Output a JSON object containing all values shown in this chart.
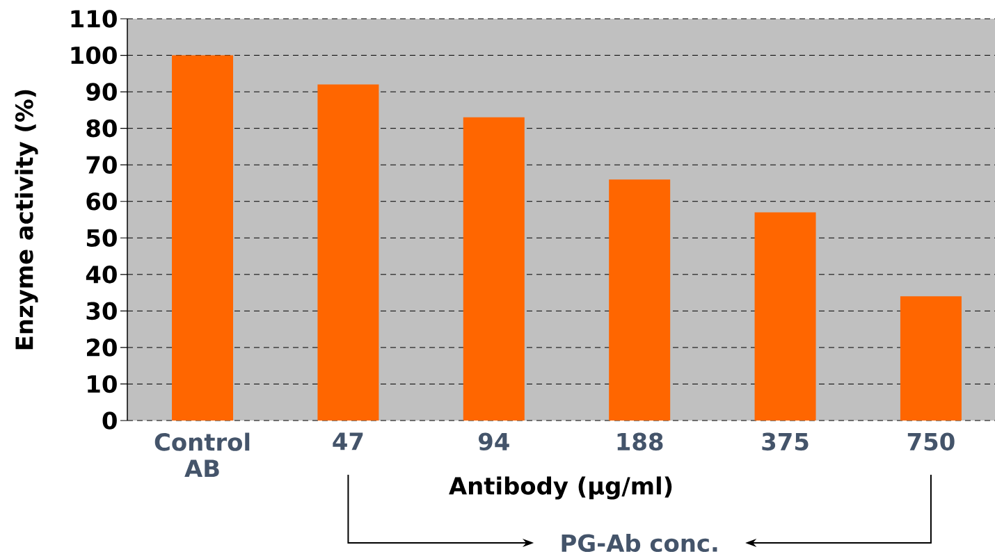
{
  "chart_data": {
    "type": "bar",
    "xlabel": "Antibody (µg/ml)",
    "ylabel": "Enzyme activity (%)",
    "categories": [
      "Control AB",
      "47",
      "94",
      "188",
      "375",
      "750"
    ],
    "values": [
      100,
      92,
      83,
      66,
      57,
      34
    ],
    "color": "#ff6600",
    "ylim": [
      0,
      110
    ],
    "yticks": [
      0,
      10,
      20,
      30,
      40,
      50,
      60,
      70,
      80,
      90,
      100,
      110
    ],
    "grid": "y",
    "annotations": [
      "PG-Ab conc."
    ]
  }
}
